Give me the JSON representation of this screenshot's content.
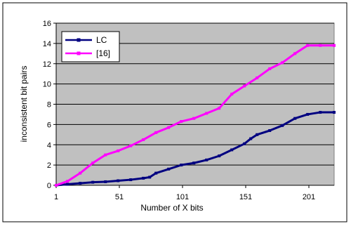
{
  "chart_data": {
    "type": "line",
    "title": "",
    "xlabel": "Number of X bits",
    "ylabel": "inconsistent bit pairs",
    "xlim": [
      1,
      221
    ],
    "ylim": [
      0,
      16
    ],
    "x_ticks": [
      1,
      51,
      101,
      151,
      201
    ],
    "y_ticks": [
      0,
      2,
      4,
      6,
      8,
      10,
      12,
      14,
      16
    ],
    "grid": "horizontal",
    "plot_background": "#c0c0c0",
    "legend_position": "top-left",
    "series": [
      {
        "name": "LC",
        "color": "#000080",
        "marker": "square",
        "points": [
          [
            1,
            0
          ],
          [
            10,
            0.1
          ],
          [
            20,
            0.2
          ],
          [
            30,
            0.3
          ],
          [
            40,
            0.35
          ],
          [
            50,
            0.45
          ],
          [
            60,
            0.55
          ],
          [
            70,
            0.7
          ],
          [
            75,
            0.8
          ],
          [
            80,
            1.2
          ],
          [
            90,
            1.6
          ],
          [
            100,
            2.0
          ],
          [
            110,
            2.2
          ],
          [
            120,
            2.5
          ],
          [
            130,
            2.9
          ],
          [
            140,
            3.5
          ],
          [
            150,
            4.1
          ],
          [
            155,
            4.6
          ],
          [
            160,
            5.0
          ],
          [
            170,
            5.4
          ],
          [
            180,
            5.9
          ],
          [
            190,
            6.6
          ],
          [
            200,
            7.0
          ],
          [
            210,
            7.2
          ],
          [
            221,
            7.2
          ]
        ]
      },
      {
        "name": "[16]",
        "color": "#ff00ff",
        "marker": "square",
        "points": [
          [
            1,
            0
          ],
          [
            10,
            0.4
          ],
          [
            20,
            1.2
          ],
          [
            30,
            2.2
          ],
          [
            40,
            3.0
          ],
          [
            50,
            3.4
          ],
          [
            60,
            3.9
          ],
          [
            70,
            4.5
          ],
          [
            80,
            5.2
          ],
          [
            90,
            5.7
          ],
          [
            100,
            6.3
          ],
          [
            110,
            6.6
          ],
          [
            120,
            7.1
          ],
          [
            130,
            7.6
          ],
          [
            140,
            9.0
          ],
          [
            150,
            9.8
          ],
          [
            160,
            10.6
          ],
          [
            170,
            11.5
          ],
          [
            180,
            12.1
          ],
          [
            190,
            13.0
          ],
          [
            200,
            13.8
          ],
          [
            210,
            13.8
          ],
          [
            221,
            13.8
          ]
        ]
      }
    ]
  }
}
